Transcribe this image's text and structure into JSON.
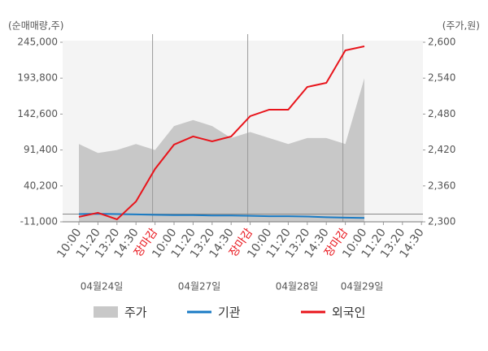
{
  "chart_data": {
    "type": "line",
    "y_axis_label": "(순매매량,주)",
    "y2_axis_label": "(주가,원)",
    "categories": [
      "10:00",
      "11:20",
      "13:20",
      "14:30",
      "장마감",
      "10:00",
      "11:20",
      "13:20",
      "14:30",
      "장마감",
      "10:00",
      "11:20",
      "13:20",
      "14:30",
      "장마감",
      "10:00",
      "11:20",
      "13:20",
      "14:30"
    ],
    "highlight_category": "장마감",
    "date_labels": [
      "04월24일",
      "04월27일",
      "04월28일",
      "04월29일"
    ],
    "series": [
      {
        "name": "주가",
        "color": "#c8c8c8",
        "axis": "y2",
        "style": "area",
        "values": [
          2430,
          2415,
          2420,
          2430,
          2420,
          2460,
          2470,
          2460,
          2440,
          2450,
          2440,
          2430,
          2440,
          2440,
          2430,
          2540,
          null,
          null,
          null
        ]
      },
      {
        "name": "기관",
        "color": "#1a7bc4",
        "values": [
          0,
          500,
          0,
          -500,
          -1000,
          -1500,
          -1500,
          -2000,
          -2000,
          -2500,
          -3000,
          -3000,
          -3500,
          -4500,
          -5000,
          -5500,
          null,
          null,
          null
        ]
      },
      {
        "name": "외국인",
        "color": "#e8141b",
        "values": [
          -4000,
          1800,
          -7500,
          18000,
          64300,
          99100,
          110700,
          103700,
          110700,
          139600,
          148900,
          148900,
          181300,
          187100,
          233400,
          239200,
          null,
          null,
          null
        ]
      }
    ],
    "ylim": [
      -11000,
      245000
    ],
    "yticks": [
      {
        "value": -11000,
        "label": "-11,000"
      },
      {
        "value": 40200,
        "label": "40,200"
      },
      {
        "value": 91400,
        "label": "91,400"
      },
      {
        "value": 142600,
        "label": "142,600"
      },
      {
        "value": 193800,
        "label": "193,800"
      },
      {
        "value": 245000,
        "label": "245,000"
      }
    ],
    "y2lim": [
      2300,
      2600
    ],
    "y2ticks": [
      {
        "value": 2300,
        "label": "2,300"
      },
      {
        "value": 2360,
        "label": "2,360"
      },
      {
        "value": 2420,
        "label": "2,420"
      },
      {
        "value": 2480,
        "label": "2,480"
      },
      {
        "value": 2540,
        "label": "2,540"
      },
      {
        "value": 2600,
        "label": "2,600"
      }
    ]
  }
}
